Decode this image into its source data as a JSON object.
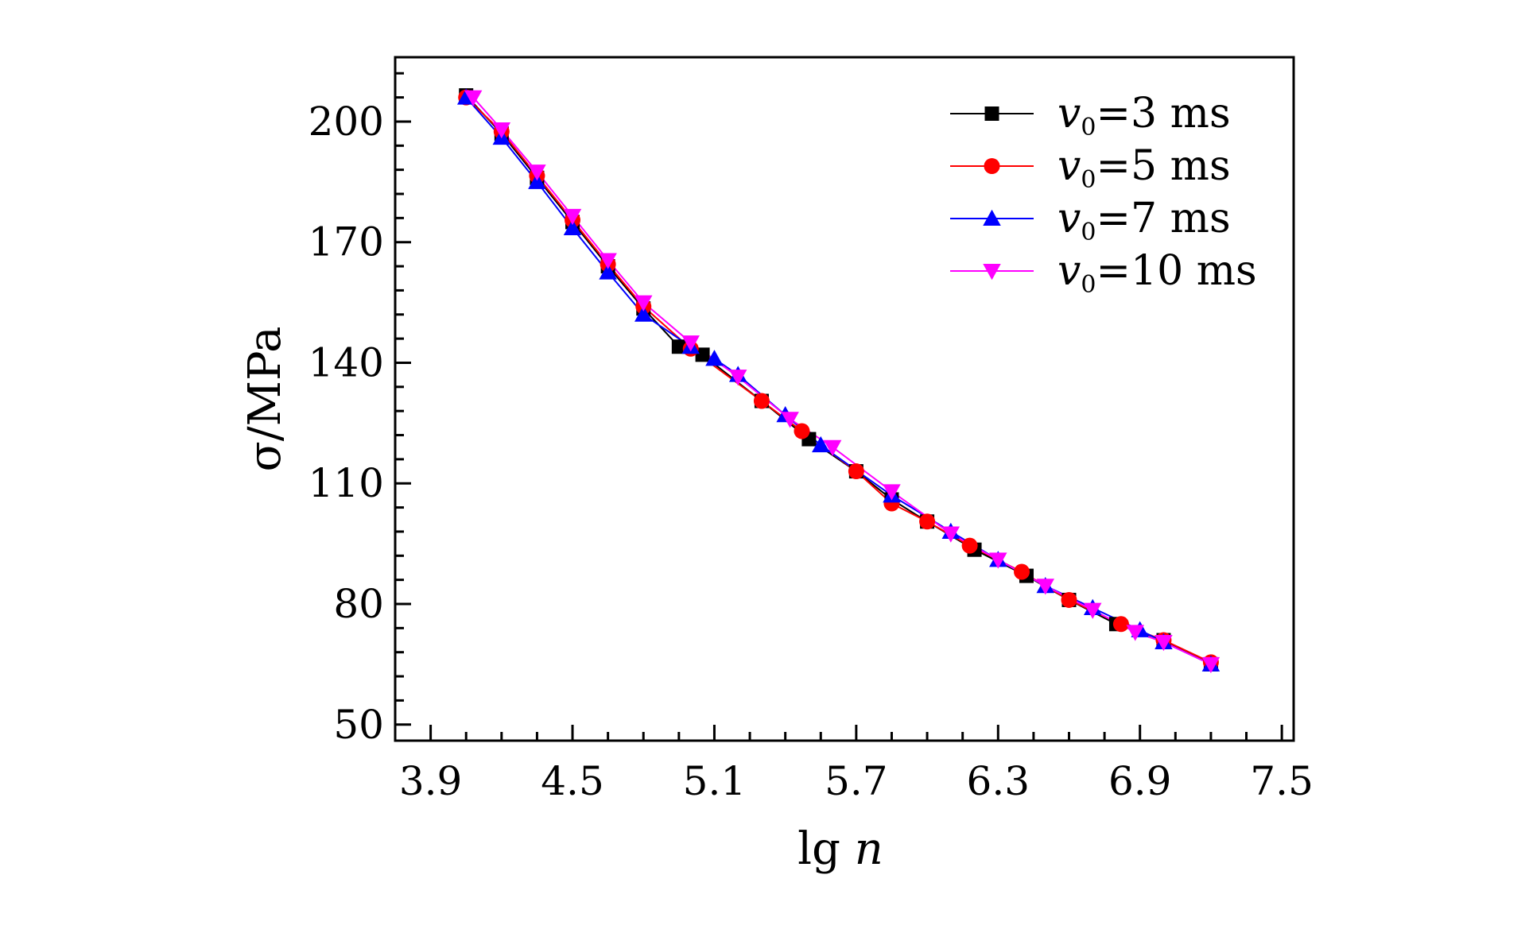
{
  "chart_data": {
    "type": "line",
    "title": "",
    "xlabel": "lg ",
    "xlabel_var": "n",
    "ylabel": "σ/MPa",
    "xlim": [
      3.75,
      7.55
    ],
    "ylim": [
      46,
      216
    ],
    "xticks": [
      3.9,
      4.5,
      5.1,
      5.7,
      6.3,
      6.9,
      7.5
    ],
    "xtick_labels": [
      "3.9",
      "4.5",
      "5.1",
      "5.7",
      "6.3",
      "6.9",
      "7.5"
    ],
    "yticks": [
      50,
      80,
      110,
      140,
      170,
      200
    ],
    "ytick_labels": [
      "50",
      "80",
      "110",
      "140",
      "170",
      "200"
    ],
    "grid": false,
    "legend_position": "top-right",
    "series": [
      {
        "name": "v0=3 ms",
        "label_var": "v",
        "label_sub": "0",
        "label_rest": "=3 ms",
        "color": "#000000",
        "marker": "square",
        "x": [
          4.05,
          4.2,
          4.35,
          4.5,
          4.65,
          4.8,
          4.95,
          5.05,
          5.3,
          5.5,
          5.7,
          5.85,
          6.0,
          6.2,
          6.42,
          6.6,
          6.8,
          7.0,
          7.2
        ],
        "y": [
          206.5,
          197.0,
          186.0,
          175.0,
          164.0,
          153.5,
          144.0,
          142.0,
          130.5,
          121.0,
          113.0,
          106.0,
          100.5,
          93.5,
          87.0,
          81.0,
          75.0,
          71.0,
          65.0
        ]
      },
      {
        "name": "v0=5 ms",
        "label_var": "v",
        "label_sub": "0",
        "label_rest": "=5 ms",
        "color": "#ff0000",
        "marker": "circle",
        "x": [
          4.05,
          4.2,
          4.35,
          4.5,
          4.65,
          4.8,
          5.0,
          5.3,
          5.47,
          5.7,
          5.85,
          6.0,
          6.18,
          6.4,
          6.6,
          6.82,
          7.0,
          7.2
        ],
        "y": [
          206.0,
          197.5,
          186.5,
          175.5,
          164.5,
          154.0,
          143.5,
          130.5,
          123.0,
          113.0,
          105.0,
          100.5,
          94.5,
          88.0,
          81.0,
          75.0,
          71.0,
          65.5
        ]
      },
      {
        "name": "v0=7 ms",
        "label_var": "v",
        "label_sub": "0",
        "label_rest": "=7 ms",
        "color": "#0000ff",
        "marker": "triangle-up",
        "x": [
          4.05,
          4.2,
          4.35,
          4.5,
          4.65,
          4.8,
          5.0,
          5.1,
          5.2,
          5.4,
          5.55,
          5.85,
          6.1,
          6.3,
          6.5,
          6.7,
          6.9,
          7.0,
          7.2
        ],
        "y": [
          206.0,
          196.0,
          185.0,
          173.5,
          162.5,
          152.0,
          144.0,
          141.0,
          137.0,
          127.0,
          119.5,
          107.0,
          98.0,
          91.0,
          84.5,
          79.0,
          73.5,
          70.5,
          65.0
        ]
      },
      {
        "name": "v0=10 ms",
        "label_var": "v",
        "label_sub": "0",
        "label_rest": "=10 ms",
        "color": "#ff00ff",
        "marker": "triangle-down",
        "x": [
          4.08,
          4.2,
          4.35,
          4.5,
          4.65,
          4.8,
          5.0,
          5.2,
          5.42,
          5.6,
          5.85,
          6.1,
          6.3,
          6.5,
          6.7,
          6.88,
          7.0,
          7.2
        ],
        "y": [
          206.0,
          198.0,
          187.5,
          176.5,
          165.5,
          155.0,
          145.0,
          136.5,
          126.0,
          119.0,
          108.0,
          97.5,
          91.0,
          84.5,
          78.5,
          73.0,
          70.5,
          65.0
        ]
      }
    ]
  }
}
